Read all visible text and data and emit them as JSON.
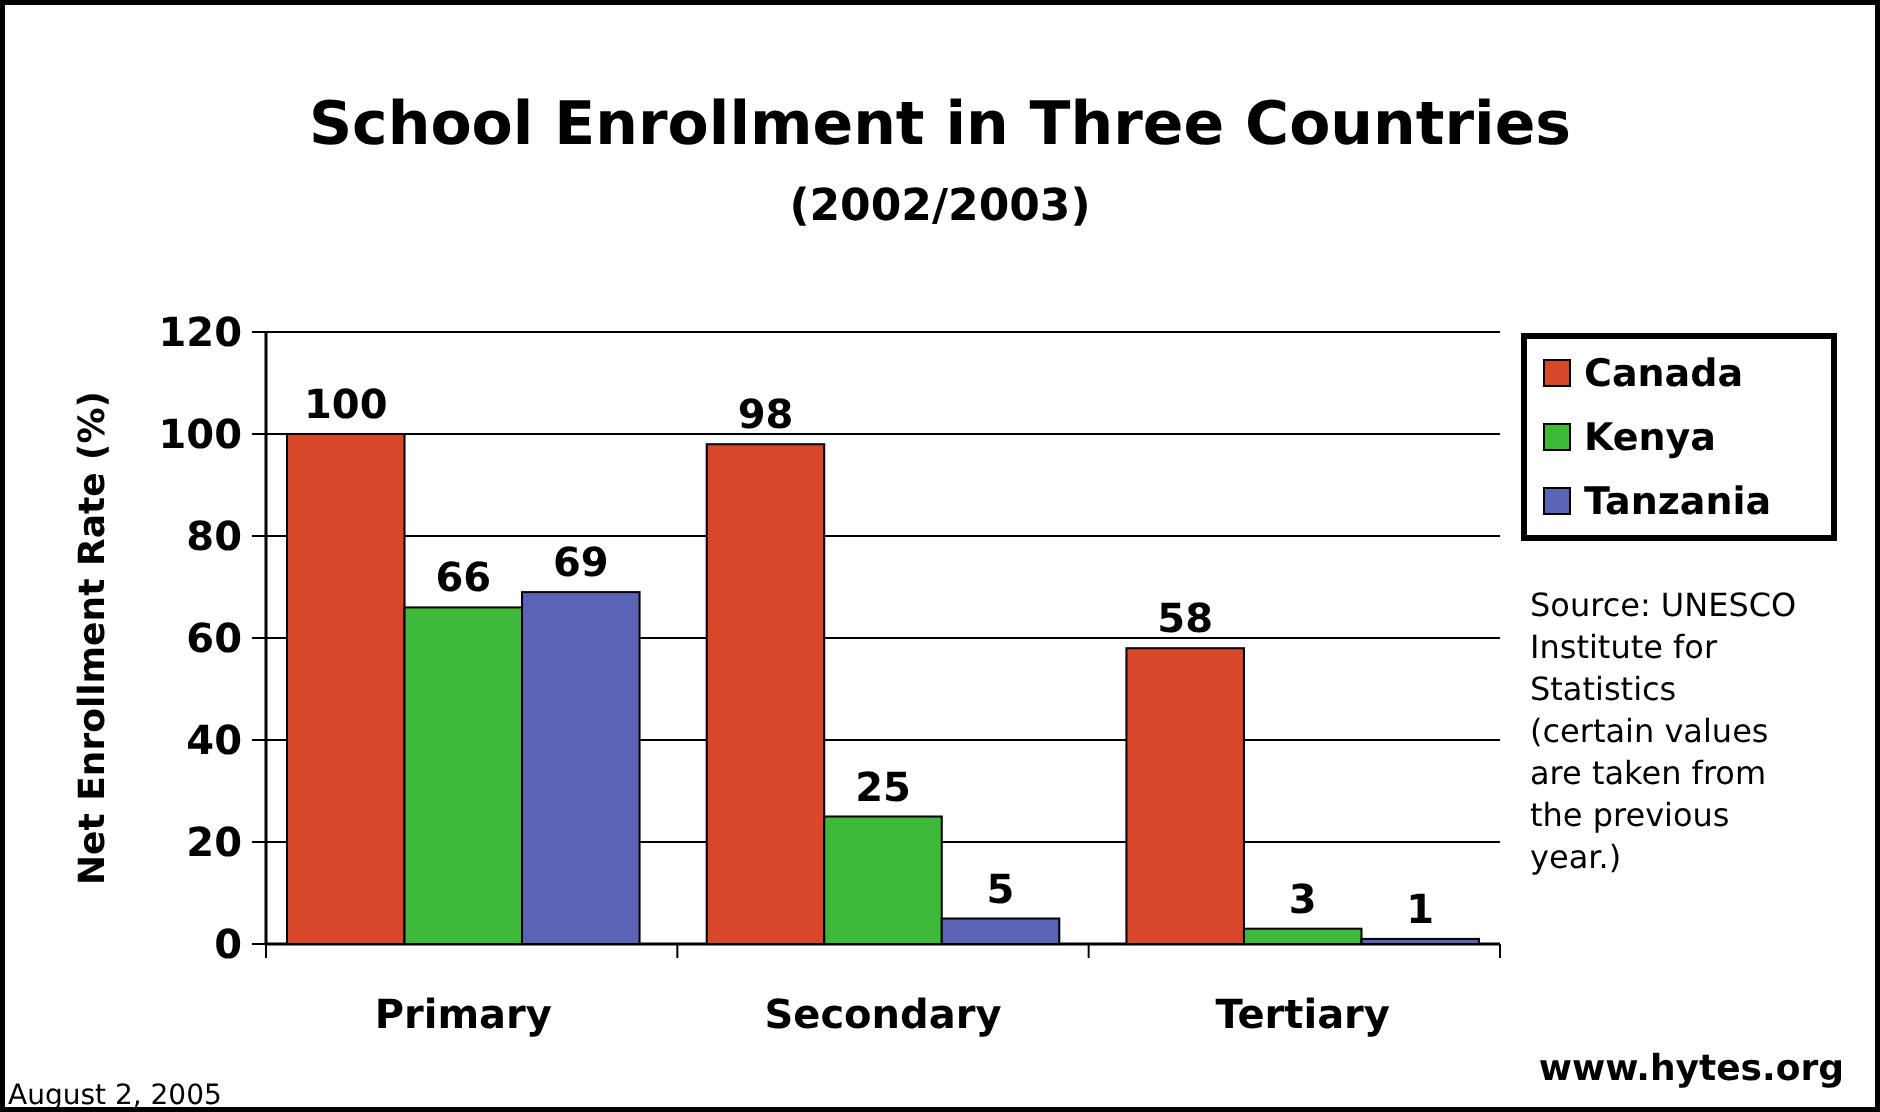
{
  "chart_data": {
    "type": "bar",
    "title": "School Enrollment in Three Countries",
    "subtitle": "(2002/2003)",
    "ylabel": "Net Enrollment Rate (%)",
    "categories": [
      "Primary",
      "Secondary",
      "Tertiary"
    ],
    "series": [
      {
        "name": "Canada",
        "color": "#d9472b",
        "values": [
          100,
          98,
          58
        ]
      },
      {
        "name": "Kenya",
        "color": "#3fb93a",
        "values": [
          66,
          25,
          3
        ]
      },
      {
        "name": "Tanzania",
        "color": "#5b63b5",
        "values": [
          69,
          5,
          1
        ]
      }
    ],
    "ylim": [
      0,
      120
    ],
    "yticks": [
      0,
      20,
      40,
      60,
      80,
      100,
      120
    ],
    "grid": "y",
    "legend": "right",
    "data_labels": true,
    "annotations": [
      "Source: UNESCO Institute for Statistics (certain values are taken from the previous year.)",
      "August 2, 2005",
      "www.hytes.org"
    ]
  }
}
